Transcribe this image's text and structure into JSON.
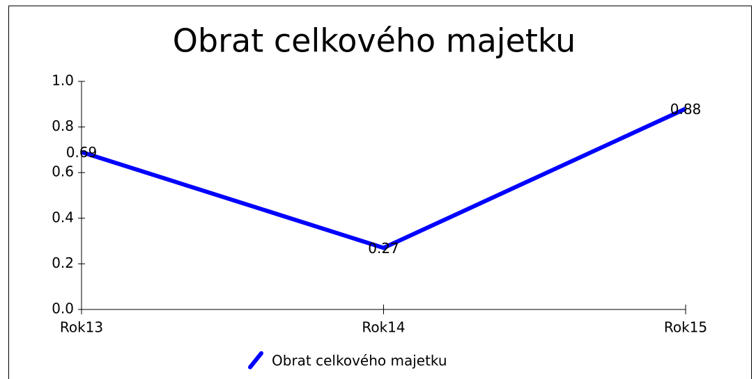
{
  "chart_data": {
    "type": "line",
    "title": "Obrat celkového majetku",
    "categories": [
      "Rok13",
      "Rok14",
      "Rok15"
    ],
    "series": [
      {
        "name": "Obrat celkového majetku",
        "color": "#0000ff",
        "values": [
          0.69,
          0.27,
          0.88
        ]
      }
    ],
    "ylim": [
      0,
      1
    ],
    "yticks": [
      {
        "value": 0,
        "label": "0.0"
      },
      0.2,
      0.4,
      0.6,
      0.8,
      {
        "value": 1,
        "label": "1.0"
      }
    ],
    "legend": "bottom",
    "grid": false
  }
}
